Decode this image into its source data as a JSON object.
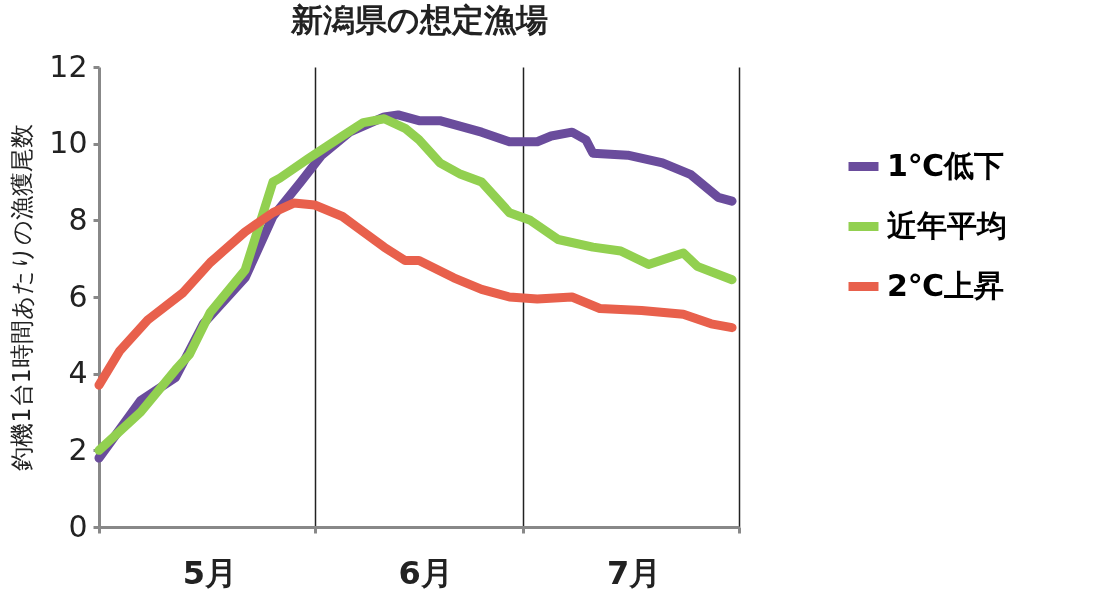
{
  "chart_data": {
    "type": "line",
    "title": "新潟県の想定漁場",
    "ylabel": "釣機1台1時間あたりの漁獲尾数",
    "xlim": [
      "--05-01",
      "--08-01"
    ],
    "xticks": [
      {
        "value": "--05-01",
        "label": null
      },
      {
        "value": "--05-16",
        "label": "5月"
      },
      {
        "value": "--06-01",
        "label": null
      },
      {
        "value": "--06-16",
        "label": "6月"
      },
      {
        "value": "--07-01",
        "label": null
      },
      {
        "value": "--07-16",
        "label": "7月"
      },
      {
        "value": "--08-01",
        "label": null
      }
    ],
    "ylim": [
      0,
      12
    ],
    "yticks": [
      0,
      2,
      4,
      6,
      8,
      10,
      12
    ],
    "grid": "x",
    "legend": "right",
    "marker": "none",
    "line_style": "solid",
    "series": [
      {
        "name": "1℃低下",
        "color": "#6a4c9c",
        "x": [
          "--05-01",
          "--05-07",
          "--05-12",
          "--05-16",
          "--05-22",
          "--05-26",
          "--05-30",
          "--06-02",
          "--06-06",
          "--06-11",
          "--06-13",
          "--06-16",
          "--06-19",
          "--06-25",
          "--06-29",
          "--07-03",
          "--07-05",
          "--07-08",
          "--07-10",
          "--07-11",
          "--07-16",
          "--07-21",
          "--07-25",
          "--07-29",
          "--07-31"
        ],
        "values": [
          1.8,
          3.3,
          3.9,
          5.3,
          6.5,
          8.1,
          9.0,
          9.7,
          10.3,
          10.7,
          10.75,
          10.6,
          10.6,
          10.3,
          10.05,
          10.05,
          10.2,
          10.3,
          10.1,
          9.75,
          9.7,
          9.5,
          9.2,
          8.6,
          8.5
        ]
      },
      {
        "name": "近年平均",
        "color": "#92d050",
        "x": [
          "--05-01",
          "--05-07",
          "--05-12",
          "--05-14",
          "--05-17",
          "--05-22",
          "--05-26",
          "--05-27",
          "--05-31",
          "--06-05",
          "--06-08",
          "--06-11",
          "--06-14",
          "--06-16",
          "--06-19",
          "--06-22",
          "--06-25",
          "--06-29",
          "--07-02",
          "--07-06",
          "--07-11",
          "--07-15",
          "--07-19",
          "--07-24",
          "--07-26",
          "--07-31"
        ],
        "values": [
          2.0,
          3.0,
          4.1,
          4.5,
          5.6,
          6.7,
          9.0,
          9.1,
          9.6,
          10.2,
          10.55,
          10.65,
          10.4,
          10.1,
          9.5,
          9.2,
          9.0,
          8.2,
          8.0,
          7.5,
          7.3,
          7.2,
          6.85,
          7.15,
          6.8,
          6.45
        ]
      },
      {
        "name": "2℃上昇",
        "color": "#e8604c",
        "x": [
          "--05-01",
          "--05-04",
          "--05-08",
          "--05-13",
          "--05-17",
          "--05-22",
          "--05-26",
          "--05-29",
          "--06-01",
          "--06-05",
          "--06-08",
          "--06-11",
          "--06-14",
          "--06-16",
          "--06-21",
          "--06-25",
          "--06-29",
          "--07-03",
          "--07-08",
          "--07-12",
          "--07-18",
          "--07-24",
          "--07-28",
          "--07-31"
        ],
        "values": [
          3.7,
          4.6,
          5.4,
          6.1,
          6.9,
          7.7,
          8.2,
          8.45,
          8.4,
          8.1,
          7.7,
          7.3,
          6.95,
          6.95,
          6.5,
          6.2,
          6.0,
          5.95,
          6.0,
          5.7,
          5.65,
          5.55,
          5.3,
          5.2
        ]
      }
    ]
  }
}
